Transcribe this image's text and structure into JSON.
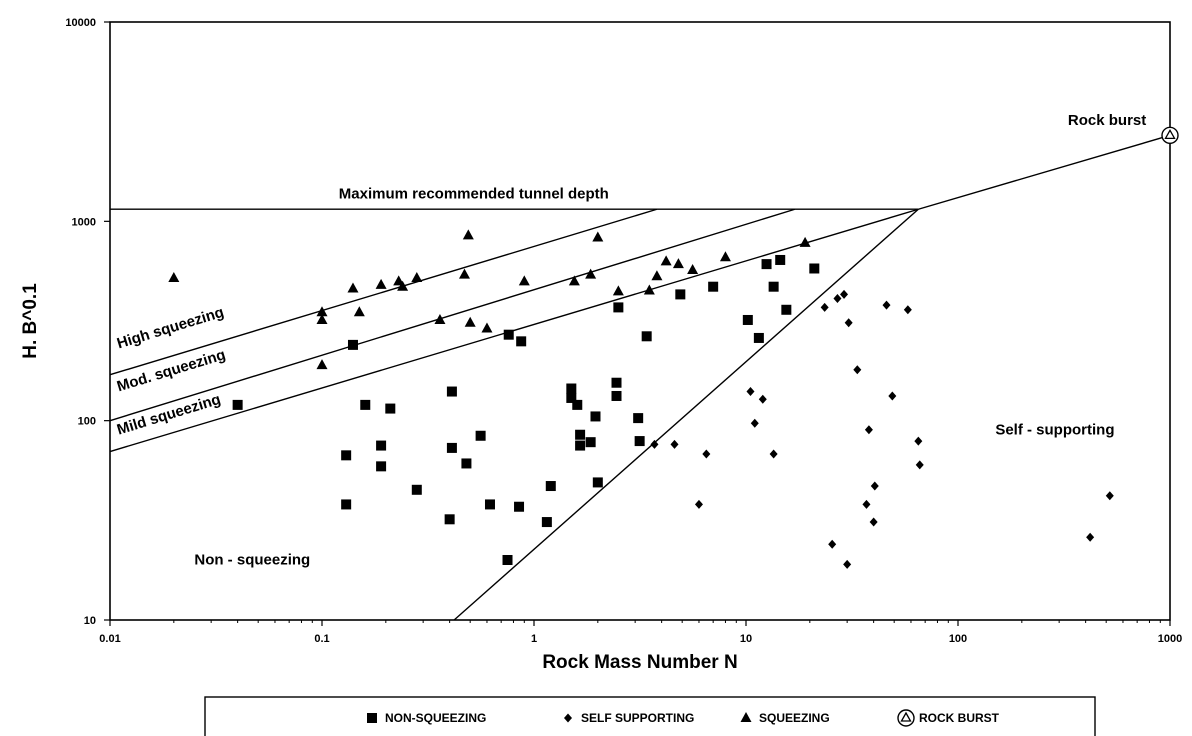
{
  "chart_data": {
    "type": "scatter",
    "xscale": "log",
    "yscale": "log",
    "xlim": [
      0.01,
      1000
    ],
    "ylim": [
      10,
      10000
    ],
    "xlabel": "Rock Mass Number N",
    "ylabel": "H. B^0.1",
    "x_ticks": [
      "0.01",
      "0.1",
      "1",
      "10",
      "100",
      "1000"
    ],
    "y_ticks": [
      "10",
      "100",
      "1000",
      "10000"
    ],
    "grid": false,
    "legend_position": "bottom",
    "series": [
      {
        "name": "NON-SQUEEZING",
        "marker": "square",
        "points": [
          [
            0.04,
            120
          ],
          [
            0.13,
            38
          ],
          [
            0.13,
            67
          ],
          [
            0.14,
            240
          ],
          [
            0.16,
            120
          ],
          [
            0.19,
            75
          ],
          [
            0.19,
            59
          ],
          [
            0.21,
            115
          ],
          [
            0.28,
            45
          ],
          [
            0.4,
            32
          ],
          [
            0.41,
            140
          ],
          [
            0.41,
            73
          ],
          [
            0.48,
            61
          ],
          [
            0.56,
            84
          ],
          [
            0.62,
            38
          ],
          [
            0.76,
            270
          ],
          [
            0.85,
            37
          ],
          [
            0.87,
            250
          ],
          [
            0.75,
            20
          ],
          [
            1.15,
            31
          ],
          [
            1.2,
            47
          ],
          [
            1.5,
            145
          ],
          [
            1.5,
            130
          ],
          [
            1.6,
            120
          ],
          [
            1.65,
            85
          ],
          [
            1.65,
            75
          ],
          [
            1.85,
            78
          ],
          [
            1.95,
            105
          ],
          [
            2.0,
            49
          ],
          [
            2.45,
            155
          ],
          [
            2.45,
            133
          ],
          [
            2.5,
            370
          ],
          [
            3.1,
            103
          ],
          [
            3.15,
            79
          ],
          [
            3.4,
            265
          ],
          [
            4.9,
            430
          ],
          [
            7.0,
            470
          ],
          [
            10.2,
            320
          ],
          [
            11.5,
            260
          ],
          [
            12.5,
            610
          ],
          [
            13.5,
            470
          ],
          [
            14.5,
            640
          ],
          [
            15.5,
            360
          ],
          [
            21,
            580
          ]
        ]
      },
      {
        "name": "SELF SUPPORTING",
        "marker": "diamond",
        "points": [
          [
            3.7,
            76
          ],
          [
            4.6,
            76
          ],
          [
            6,
            38
          ],
          [
            6.5,
            68
          ],
          [
            10.5,
            140
          ],
          [
            11,
            97
          ],
          [
            12,
            128
          ],
          [
            13.5,
            68
          ],
          [
            23.5,
            370
          ],
          [
            25.5,
            24
          ],
          [
            27,
            410
          ],
          [
            29,
            430
          ],
          [
            30,
            19
          ],
          [
            30.5,
            310
          ],
          [
            33.5,
            180
          ],
          [
            37,
            38
          ],
          [
            38,
            90
          ],
          [
            40,
            31
          ],
          [
            40.5,
            47
          ],
          [
            46,
            380
          ],
          [
            49,
            133
          ],
          [
            58,
            360
          ],
          [
            65,
            79
          ],
          [
            66,
            60
          ],
          [
            420,
            26
          ],
          [
            520,
            42
          ]
        ]
      },
      {
        "name": "SQUEEZING",
        "marker": "triangle",
        "points": [
          [
            0.02,
            520
          ],
          [
            0.1,
            190
          ],
          [
            0.1,
            320
          ],
          [
            0.1,
            350
          ],
          [
            0.14,
            460
          ],
          [
            0.15,
            350
          ],
          [
            0.19,
            480
          ],
          [
            0.23,
            500
          ],
          [
            0.24,
            470
          ],
          [
            0.28,
            520
          ],
          [
            0.36,
            320
          ],
          [
            0.47,
            540
          ],
          [
            0.49,
            850
          ],
          [
            0.5,
            310
          ],
          [
            0.6,
            290
          ],
          [
            0.9,
            500
          ],
          [
            2.0,
            830
          ],
          [
            1.55,
            500
          ],
          [
            1.85,
            540
          ],
          [
            2.5,
            445
          ],
          [
            3.5,
            450
          ],
          [
            3.8,
            530
          ],
          [
            4.2,
            630
          ],
          [
            4.8,
            610
          ],
          [
            5.6,
            570
          ],
          [
            8.0,
            660
          ],
          [
            19,
            780
          ]
        ]
      },
      {
        "name": "ROCK BURST",
        "marker": "circled-triangle",
        "points": [
          [
            1000,
            2700
          ]
        ]
      }
    ],
    "reference_lines": [
      {
        "name": "Maximum recommended tunnel depth",
        "x": [
          0.01,
          65
        ],
        "y": [
          1150,
          1150
        ]
      },
      {
        "name": "high-squeezing-boundary",
        "x": [
          0.01,
          3.8
        ],
        "y": [
          170,
          1150
        ]
      },
      {
        "name": "mod-squeezing-boundary",
        "x": [
          0.01,
          17
        ],
        "y": [
          100,
          1150
        ]
      },
      {
        "name": "mild-squeezing-boundary",
        "x": [
          0.01,
          65
        ],
        "y": [
          70,
          1150
        ]
      },
      {
        "name": "self-supporting-boundary",
        "x": [
          0.42,
          65
        ],
        "y": [
          10,
          1150
        ]
      },
      {
        "name": "rock-burst-boundary",
        "x": [
          65,
          1000
        ],
        "y": [
          1150,
          2700
        ]
      }
    ],
    "annotations": [
      {
        "text": "Maximum recommended tunnel depth",
        "x": 0.12,
        "y": 1300
      },
      {
        "text": "High squeezing",
        "x": 0.011,
        "y": 230,
        "rotate": -17
      },
      {
        "text": "Mod. squeezing",
        "x": 0.011,
        "y": 140,
        "rotate": -17
      },
      {
        "text": "Mild squeezing",
        "x": 0.011,
        "y": 85,
        "rotate": -17
      },
      {
        "text": "Non - squeezing",
        "x": 0.025,
        "y": 19
      },
      {
        "text": "Self - supporting",
        "x": 150,
        "y": 85
      },
      {
        "text": "Rock burst",
        "x": 330,
        "y": 3050
      }
    ]
  },
  "legend": {
    "items": [
      {
        "label": "NON-SQUEEZING",
        "marker": "square"
      },
      {
        "label": "SELF SUPPORTING",
        "marker": "diamond"
      },
      {
        "label": "SQUEEZING",
        "marker": "triangle"
      },
      {
        "label": "ROCK BURST",
        "marker": "circled-triangle"
      }
    ]
  },
  "colors": {
    "ink": "#000000",
    "background": "#ffffff"
  }
}
